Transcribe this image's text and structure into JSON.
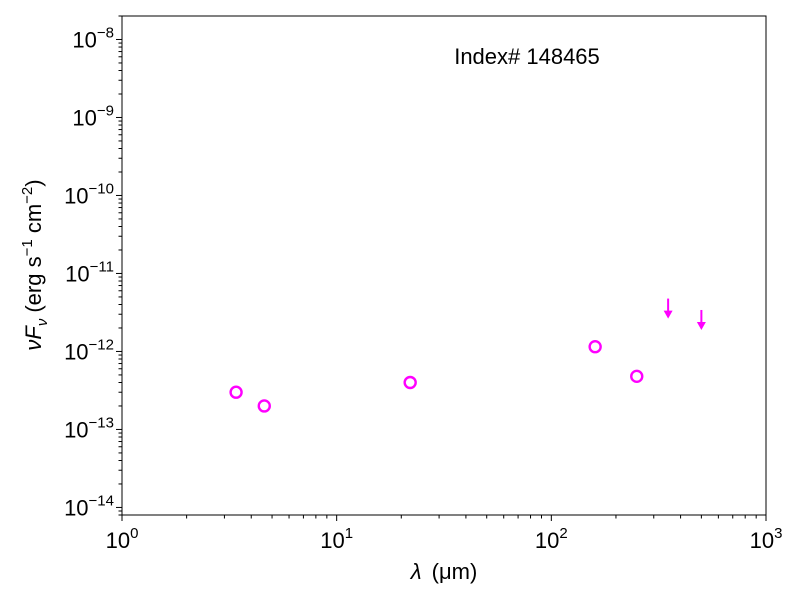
{
  "chart_data": {
    "type": "scatter",
    "title": "",
    "annotation": "Index# 148465",
    "xlabel": {
      "prefix": "λ",
      "unit": "(μm)"
    },
    "ylabel": {
      "main": "νF",
      "sub": "ν",
      "unit": "(erg s",
      "exp1": "−1",
      "mid": " cm",
      "exp2": "−2",
      "end": ")"
    },
    "x_scale": "log",
    "y_scale": "log",
    "xlim": [
      1,
      1000
    ],
    "ylim": [
      8e-15,
      2e-08
    ],
    "x_ticks": [
      {
        "value": 1,
        "base": "10",
        "exp": "0"
      },
      {
        "value": 10,
        "base": "10",
        "exp": "1"
      },
      {
        "value": 100,
        "base": "10",
        "exp": "2"
      },
      {
        "value": 1000,
        "base": "10",
        "exp": "3"
      }
    ],
    "y_ticks": [
      {
        "value": 1e-14,
        "base": "10",
        "exp": "−14"
      },
      {
        "value": 1e-13,
        "base": "10",
        "exp": "−13"
      },
      {
        "value": 1e-12,
        "base": "10",
        "exp": "−12"
      },
      {
        "value": 1e-11,
        "base": "10",
        "exp": "−11"
      },
      {
        "value": 1e-10,
        "base": "10",
        "exp": "−10"
      },
      {
        "value": 1e-09,
        "base": "10",
        "exp": "−9"
      },
      {
        "value": 1e-08,
        "base": "10",
        "exp": "−8"
      }
    ],
    "grid": false,
    "series": [
      {
        "marker": "open-circle",
        "color": "#ff00ff",
        "points": [
          {
            "x": 3.4,
            "y": 3e-13
          },
          {
            "x": 4.6,
            "y": 2e-13
          },
          {
            "x": 22,
            "y": 4e-13
          },
          {
            "x": 160,
            "y": 1.15e-12
          },
          {
            "x": 250,
            "y": 4.8e-13
          }
        ]
      },
      {
        "marker": "upper-limit-arrow",
        "color": "#ff00ff",
        "points": [
          {
            "x": 350,
            "y": 2.8e-12
          },
          {
            "x": 500,
            "y": 2e-12
          }
        ]
      }
    ]
  }
}
